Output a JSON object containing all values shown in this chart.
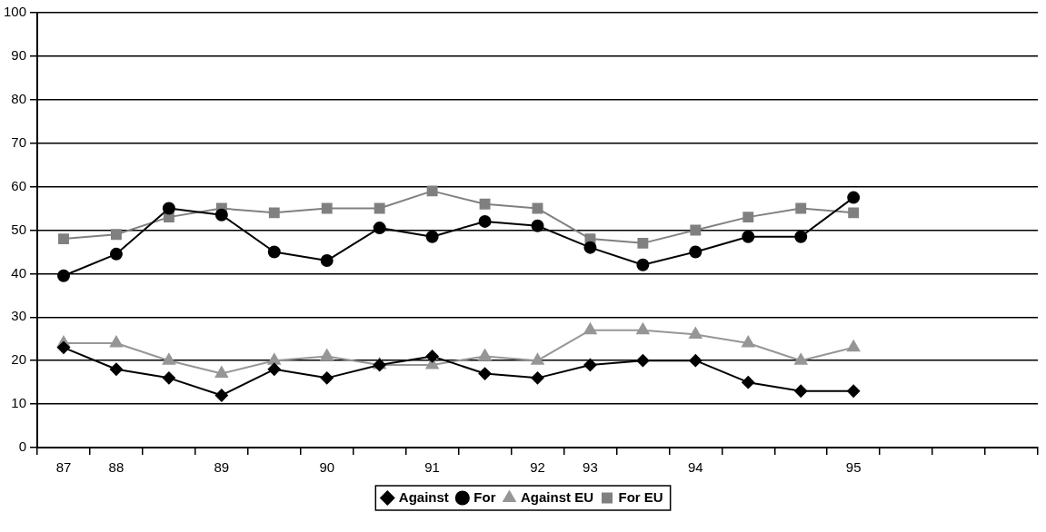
{
  "chart_data": {
    "type": "line",
    "categories": [
      "87",
      "88",
      null,
      "89",
      null,
      "90",
      null,
      "91",
      null,
      "92",
      "93",
      null,
      "94",
      null,
      null,
      "95",
      null,
      null,
      null
    ],
    "series": [
      {
        "name": "Against",
        "color": "#000000",
        "marker": "diamond",
        "values": [
          23,
          18,
          16,
          12,
          18,
          16,
          19,
          21,
          17,
          16,
          19,
          20,
          20,
          15,
          13,
          13,
          null,
          null,
          null
        ]
      },
      {
        "name": "For",
        "color": "#000000",
        "marker": "circle",
        "values": [
          39.5,
          44.5,
          55,
          53.5,
          45,
          43,
          50.5,
          48.5,
          52,
          51,
          46,
          42,
          45,
          48.5,
          48.5,
          57.5,
          null,
          null,
          null
        ]
      },
      {
        "name": "Against EU",
        "color": "#969696",
        "marker": "triangle",
        "values": [
          24,
          24,
          20,
          17,
          20,
          21,
          19,
          19,
          21,
          20,
          27,
          27,
          26,
          24,
          20,
          23,
          null,
          null,
          null
        ]
      },
      {
        "name": "For EU",
        "color": "#808080",
        "marker": "square",
        "values": [
          48,
          49,
          53,
          55,
          54,
          55,
          55,
          59,
          56,
          55,
          48,
          47,
          50,
          53,
          55,
          54,
          null,
          null,
          null
        ]
      }
    ],
    "ylim": [
      0,
      100
    ],
    "yticks": [
      0,
      10,
      20,
      30,
      40,
      50,
      60,
      70,
      80,
      90,
      100
    ],
    "grid": "y",
    "legend": "bottom"
  }
}
